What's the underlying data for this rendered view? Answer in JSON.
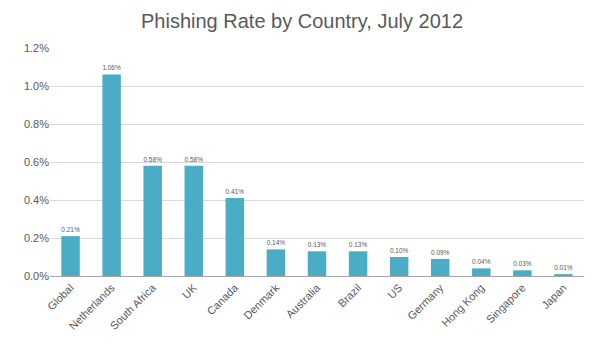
{
  "chart_data": {
    "type": "bar",
    "title": "Phishing Rate by Country, July 2012",
    "categories": [
      "Global",
      "Netherlands",
      "South Africa",
      "UK",
      "Canada",
      "Denmark",
      "Australia",
      "Brazil",
      "US",
      "Germany",
      "Hong Kong",
      "Singapore",
      "Japan"
    ],
    "values": [
      0.21,
      1.06,
      0.58,
      0.58,
      0.41,
      0.14,
      0.13,
      0.13,
      0.1,
      0.09,
      0.04,
      0.03,
      0.01
    ],
    "value_labels": [
      "0.21%",
      "1.06%",
      "0.58%",
      "0.58%",
      "0.41%",
      "0.14%",
      "0.13%",
      "0.13%",
      "0.10%",
      "0.09%",
      "0.04%",
      "0.03%",
      "0.01%"
    ],
    "data_labels": true,
    "color": "#4bacc6",
    "ylim": [
      0,
      1.2
    ],
    "yticks": [
      {
        "value": 0,
        "label": "0.0%"
      },
      {
        "value": 0.2,
        "label": "0.2%"
      },
      {
        "value": 0.4,
        "label": "0.4%"
      },
      {
        "value": 0.6,
        "label": "0.6%"
      },
      {
        "value": 0.8,
        "label": "0.8%"
      },
      {
        "value": 1.0,
        "label": "1.0%"
      },
      {
        "value": 1.2,
        "label": "1.2%"
      }
    ],
    "grid": true
  }
}
